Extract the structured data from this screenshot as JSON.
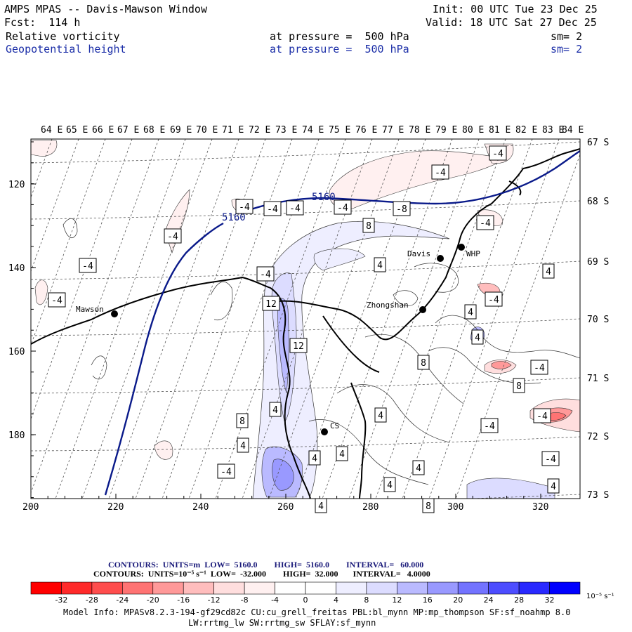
{
  "header": {
    "title": "AMPS MPAS -- Davis-Mawson Window",
    "fcst": "Fcst:  114 h",
    "init": "Init: 00 UTC Tue 23 Dec 25",
    "valid": "Valid: 18 UTC Sat 27 Dec 25",
    "field1": {
      "name": "Relative vorticity",
      "level": "at pressure =  500 hPa",
      "sm": "sm= 2"
    },
    "field2": {
      "name": "Geopotential height",
      "level": "at pressure =  500 hPa",
      "sm": "sm= 2"
    }
  },
  "top_lon_labels": [
    "64 E",
    "65 E",
    "66 E",
    "67 E",
    "68 E",
    "69 E",
    "70 E",
    "71 E",
    "72 E",
    "73 E",
    "74 E",
    "75 E",
    "76 E",
    "77 E",
    "78 E",
    "79 E",
    "80 E",
    "81 E",
    "82 E",
    "83 E",
    "84 E"
  ],
  "right_lat_labels": [
    "67 S",
    "68 S",
    "69 S",
    "70 S",
    "71 S",
    "72 S",
    "73 S"
  ],
  "x_axis_ticks": [
    "200",
    "220",
    "240",
    "260",
    "280",
    "300",
    "320"
  ],
  "y_axis_ticks": [
    "120",
    "140",
    "160",
    "180"
  ],
  "stations": [
    {
      "name": "Mawson"
    },
    {
      "name": "Davis"
    },
    {
      "name": "WHP"
    },
    {
      "name": "Zhongshan"
    },
    {
      "name": "CS"
    }
  ],
  "height_contour_labels": [
    "5160",
    "5160"
  ],
  "vorticity_labels": [
    "-4",
    "-4",
    "-4",
    "-4",
    "-4",
    "-4",
    "-4",
    "-8",
    "-4",
    "-4",
    "-4",
    "-4",
    "-4",
    "-4",
    "-4",
    "-4",
    "-4",
    "-4",
    "8",
    "4",
    "4",
    "12",
    "12",
    "4",
    "8",
    "8",
    "4",
    "8",
    "4",
    "4",
    "4",
    "4",
    "4",
    "4",
    "4",
    "8",
    "4",
    "4"
  ],
  "contour_info": {
    "line1": "CONTOURS:  UNITS=m  LOW=  5160.0        HIGH=  5160.0        INTERVAL=   60.000",
    "line2": "CONTOURS:  UNITS=10⁻⁵ s⁻¹  LOW=  -32.000        HIGH=  32.000       INTERVAL=   4.0000"
  },
  "colorbar": {
    "labels": [
      "-32",
      "-28",
      "-24",
      "-20",
      "-16",
      "-12",
      "-8",
      "-4",
      "0",
      "4",
      "8",
      "12",
      "16",
      "20",
      "24",
      "28",
      "32"
    ],
    "unit": "10⁻⁵ s⁻¹",
    "colors": [
      "#ff0000",
      "#ff2a2a",
      "#ff4d4d",
      "#ff7373",
      "#ff9999",
      "#ffbdbd",
      "#ffdede",
      "#fff0f0",
      "#ffffff",
      "#eeeeff",
      "#dcdcff",
      "#babaff",
      "#9999ff",
      "#7373ff",
      "#4d4dff",
      "#2929ff",
      "#0000ff"
    ]
  },
  "model_info": {
    "line1": "Model Info: MPASv8.2.3-194-gf29cd82c CU:cu_grell_freitas PBL:bl_mynn MP:mp_thompson SF:sf_noahmp 8.0",
    "line2": "LW:rrtmg_lw SW:rrtmg_sw SFLAY:sf_mynn"
  }
}
